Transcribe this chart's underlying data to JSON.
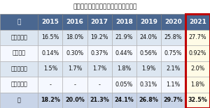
{
  "title": "キャッシュレス決済比率の内訳の推移",
  "columns": [
    "年",
    "2015",
    "2016",
    "2017",
    "2018",
    "2019",
    "2020",
    "2021"
  ],
  "rows": [
    [
      "クレジット",
      "16.5%",
      "18.0%",
      "19.2%",
      "21.9%",
      "24.0%",
      "25.8%",
      "27.7%"
    ],
    [
      "デビット",
      "0.14%",
      "0.30%",
      "0.37%",
      "0.44%",
      "0.56%",
      "0.75%",
      "0.92%"
    ],
    [
      "電子マネー",
      "1.5%",
      "1.7%",
      "1.7%",
      "1.8%",
      "1.9%",
      "2.1%",
      "2.0%"
    ],
    [
      "コード決済",
      "-",
      "-",
      "-",
      "0.05%",
      "0.31%",
      "1.1%",
      "1.8%"
    ],
    [
      "計",
      "18.2%",
      "20.0%",
      "21.3%",
      "24.1%",
      "26.8%",
      "29.7%",
      "32.5%"
    ]
  ],
  "header_bg": "#4a6790",
  "header_fg": "#ffffff",
  "row_bg_light": "#dce6f1",
  "row_bg_white": "#f5f8ff",
  "last_col_bg": "#fffbe6",
  "last_col_border": "#c00000",
  "total_row_bg": "#c8d4e8",
  "title_fontsize": 6.5,
  "cell_fontsize": 5.8,
  "header_fontsize": 6.5,
  "col_widths_raw": [
    1.55,
    1.0,
    1.0,
    1.0,
    1.0,
    1.0,
    1.0,
    1.0
  ]
}
